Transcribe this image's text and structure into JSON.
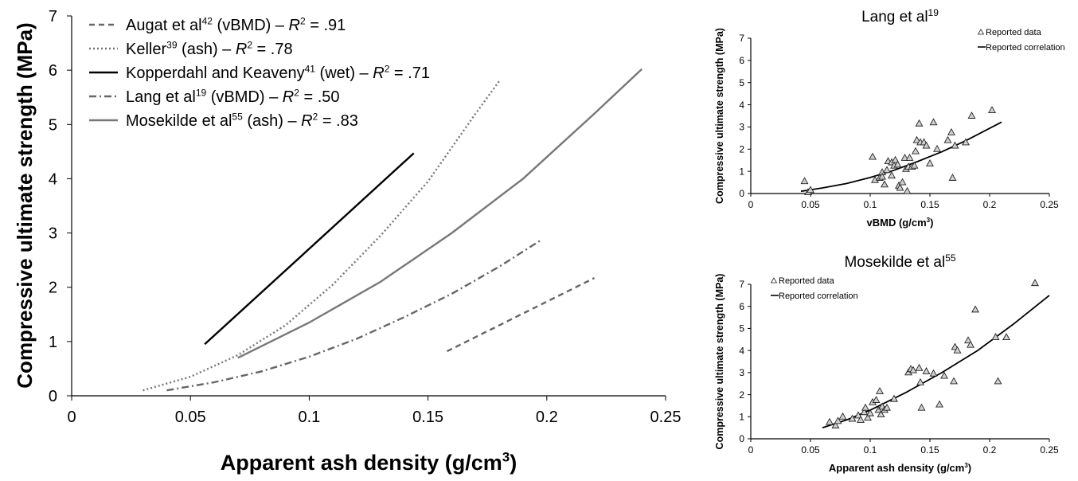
{
  "chart_data": [
    {
      "type": "line",
      "title": "",
      "xlabel": "Apparent ash density (g/cm",
      "xlabel_sup": "3",
      "xlabel_end": ")",
      "ylabel": "Compressive ultimate strength (MPa)",
      "xlim": [
        0,
        0.25
      ],
      "ylim": [
        0,
        7
      ],
      "xticks": [
        "0",
        "0.05",
        "0.1",
        "0.15",
        "0.2",
        "0.25"
      ],
      "yticks": [
        "0",
        "1",
        "2",
        "3",
        "4",
        "5",
        "6",
        "7"
      ],
      "grid": false,
      "legend_position": "top-left",
      "series": [
        {
          "name": "Augat et al",
          "sup": "42",
          "rest": " (vBMD) – ",
          "r2": " = .91",
          "style": "dashed",
          "color": "#666666",
          "x": [
            0.158,
            0.22
          ],
          "y": [
            0.82,
            2.17
          ]
        },
        {
          "name": "Keller",
          "sup": "39",
          "rest": " (ash) – ",
          "r2": " = .78",
          "style": "dotted",
          "color": "#777777",
          "x": [
            0.03,
            0.05,
            0.07,
            0.09,
            0.11,
            0.13,
            0.15,
            0.17,
            0.18
          ],
          "y": [
            0.1,
            0.35,
            0.75,
            1.3,
            2.05,
            2.95,
            3.95,
            5.2,
            5.8
          ]
        },
        {
          "name": "Kopperdahl and Keaveny",
          "sup": "41",
          "rest": " (wet) – ",
          "r2": " = .71",
          "style": "solid",
          "color": "#000000",
          "x": [
            0.056,
            0.144
          ],
          "y": [
            0.95,
            4.47
          ]
        },
        {
          "name": "Lang et al",
          "sup": "19",
          "rest": " (vBMD) – ",
          "r2": " = .50",
          "style": "dashdot",
          "color": "#666666",
          "x": [
            0.04,
            0.06,
            0.08,
            0.1,
            0.12,
            0.14,
            0.16,
            0.18,
            0.198
          ],
          "y": [
            0.1,
            0.25,
            0.45,
            0.72,
            1.05,
            1.45,
            1.88,
            2.38,
            2.88
          ]
        },
        {
          "name": "Mosekilde et al",
          "sup": "55",
          "rest": " (ash) – ",
          "r2": " = .83",
          "style": "solid",
          "color": "#777777",
          "x": [
            0.07,
            0.1,
            0.13,
            0.16,
            0.19,
            0.22,
            0.24
          ],
          "y": [
            0.7,
            1.35,
            2.1,
            3.0,
            4.0,
            5.2,
            6.02
          ]
        }
      ]
    },
    {
      "type": "scatter",
      "title": "Lang et al",
      "title_sup": "19",
      "xlabel": "vBMD (g/cm",
      "xlabel_sup": "3",
      "xlabel_end": ")",
      "ylabel": "Compressive ultimate strength (MPa)",
      "xlim": [
        0,
        0.25
      ],
      "ylim": [
        0,
        7
      ],
      "xticks": [
        "0",
        "0.05",
        "0.1",
        "0.15",
        "0.2",
        "0.25"
      ],
      "yticks": [
        "0",
        "1",
        "2",
        "3",
        "4",
        "5",
        "6",
        "7"
      ],
      "legend_position": "top-right",
      "legend": [
        "Reported data",
        "Reported correlation"
      ],
      "points": [
        [
          0.045,
          0.55
        ],
        [
          0.048,
          0.05
        ],
        [
          0.05,
          0.15
        ],
        [
          0.102,
          1.65
        ],
        [
          0.104,
          0.6
        ],
        [
          0.108,
          0.7
        ],
        [
          0.11,
          0.95
        ],
        [
          0.11,
          0.75
        ],
        [
          0.112,
          0.4
        ],
        [
          0.114,
          1.05
        ],
        [
          0.115,
          1.45
        ],
        [
          0.118,
          1.4
        ],
        [
          0.118,
          0.8
        ],
        [
          0.12,
          1.25
        ],
        [
          0.121,
          1.5
        ],
        [
          0.123,
          1.3
        ],
        [
          0.124,
          0.35
        ],
        [
          0.125,
          0.25
        ],
        [
          0.127,
          0.5
        ],
        [
          0.129,
          1.6
        ],
        [
          0.13,
          1.1
        ],
        [
          0.131,
          0.1
        ],
        [
          0.132,
          1.2
        ],
        [
          0.133,
          1.6
        ],
        [
          0.135,
          1.2
        ],
        [
          0.137,
          1.25
        ],
        [
          0.138,
          1.9
        ],
        [
          0.139,
          2.4
        ],
        [
          0.141,
          3.15
        ],
        [
          0.142,
          2.3
        ],
        [
          0.145,
          2.3
        ],
        [
          0.147,
          2.15
        ],
        [
          0.15,
          1.35
        ],
        [
          0.153,
          3.2
        ],
        [
          0.156,
          2.0
        ],
        [
          0.165,
          2.4
        ],
        [
          0.168,
          2.75
        ],
        [
          0.169,
          0.7
        ],
        [
          0.171,
          2.15
        ],
        [
          0.18,
          2.3
        ],
        [
          0.185,
          3.5
        ],
        [
          0.202,
          3.75
        ]
      ],
      "fit": {
        "x": [
          0.042,
          0.06,
          0.08,
          0.1,
          0.12,
          0.14,
          0.16,
          0.18,
          0.21
        ],
        "y": [
          0.1,
          0.25,
          0.45,
          0.72,
          1.05,
          1.45,
          1.88,
          2.38,
          3.22
        ]
      }
    },
    {
      "type": "scatter",
      "title": "Mosekilde et al",
      "title_sup": "55",
      "xlabel": "Apparent ash density (g/cm",
      "xlabel_sup": "3",
      "xlabel_end": ")",
      "ylabel": "Compressive ultimate strength (MPa)",
      "xlim": [
        0,
        0.25
      ],
      "ylim": [
        0,
        7
      ],
      "xticks": [
        "0",
        "0.05",
        "0.1",
        "0.15",
        "0.2",
        "0.25"
      ],
      "yticks": [
        "0",
        "1",
        "2",
        "3",
        "4",
        "5",
        "6",
        "7"
      ],
      "legend_position": "top-left",
      "legend": [
        "Reported data",
        "Reported correlation"
      ],
      "points": [
        [
          0.066,
          0.75
        ],
        [
          0.071,
          0.6
        ],
        [
          0.073,
          0.8
        ],
        [
          0.077,
          1.0
        ],
        [
          0.085,
          0.9
        ],
        [
          0.09,
          1.05
        ],
        [
          0.092,
          0.85
        ],
        [
          0.095,
          1.2
        ],
        [
          0.096,
          1.4
        ],
        [
          0.098,
          0.95
        ],
        [
          0.1,
          1.15
        ],
        [
          0.102,
          1.65
        ],
        [
          0.105,
          1.75
        ],
        [
          0.107,
          1.3
        ],
        [
          0.108,
          2.15
        ],
        [
          0.109,
          1.1
        ],
        [
          0.11,
          1.45
        ],
        [
          0.112,
          1.3
        ],
        [
          0.114,
          1.4
        ],
        [
          0.12,
          1.8
        ],
        [
          0.132,
          3.0
        ],
        [
          0.134,
          3.15
        ],
        [
          0.136,
          3.1
        ],
        [
          0.141,
          3.2
        ],
        [
          0.142,
          2.55
        ],
        [
          0.143,
          1.4
        ],
        [
          0.147,
          3.05
        ],
        [
          0.153,
          2.95
        ],
        [
          0.158,
          1.55
        ],
        [
          0.162,
          2.85
        ],
        [
          0.17,
          2.6
        ],
        [
          0.171,
          4.15
        ],
        [
          0.173,
          4.0
        ],
        [
          0.182,
          4.45
        ],
        [
          0.184,
          4.25
        ],
        [
          0.188,
          5.85
        ],
        [
          0.205,
          4.6
        ],
        [
          0.207,
          2.6
        ],
        [
          0.214,
          4.6
        ],
        [
          0.238,
          7.05
        ]
      ],
      "fit": {
        "x": [
          0.06,
          0.08,
          0.1,
          0.13,
          0.16,
          0.19,
          0.22,
          0.25
        ],
        "y": [
          0.5,
          0.85,
          1.3,
          2.1,
          3.0,
          4.0,
          5.2,
          6.5
        ]
      }
    }
  ],
  "legend_r": "R",
  "legend_r_sup": "2"
}
